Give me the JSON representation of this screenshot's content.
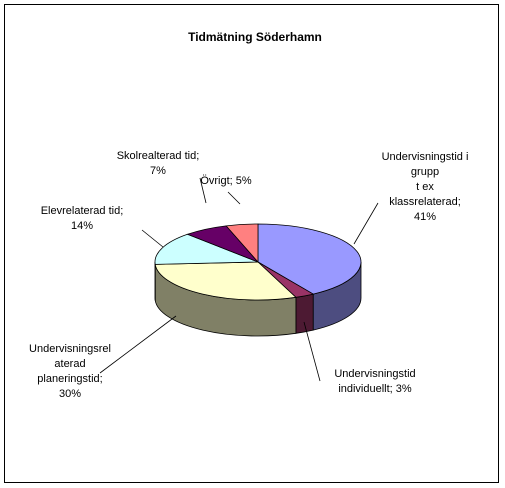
{
  "chart_data": {
    "type": "pie3d",
    "title": "Tidmätning Söderhamn",
    "values": [
      41,
      3,
      30,
      14,
      7,
      5
    ],
    "value_labels": [
      [
        "Undervisningstid i",
        "grupp",
        "t ex",
        "klassrelaterad;",
        "41%"
      ],
      [
        "Undervisningstid",
        "individuellt; 3%"
      ],
      [
        "Undervisningsrel",
        "aterad",
        "planeringstid;",
        "30%"
      ],
      [
        "Elevrelaterad tid;",
        "14%"
      ],
      [
        "Skolrealterad tid;",
        "7%"
      ],
      [
        "Övrigt; 5%"
      ]
    ],
    "colors": [
      "#9999ff",
      "#993366",
      "#ffffcc",
      "#ccffff",
      "#660066",
      "#ff8080"
    ]
  }
}
